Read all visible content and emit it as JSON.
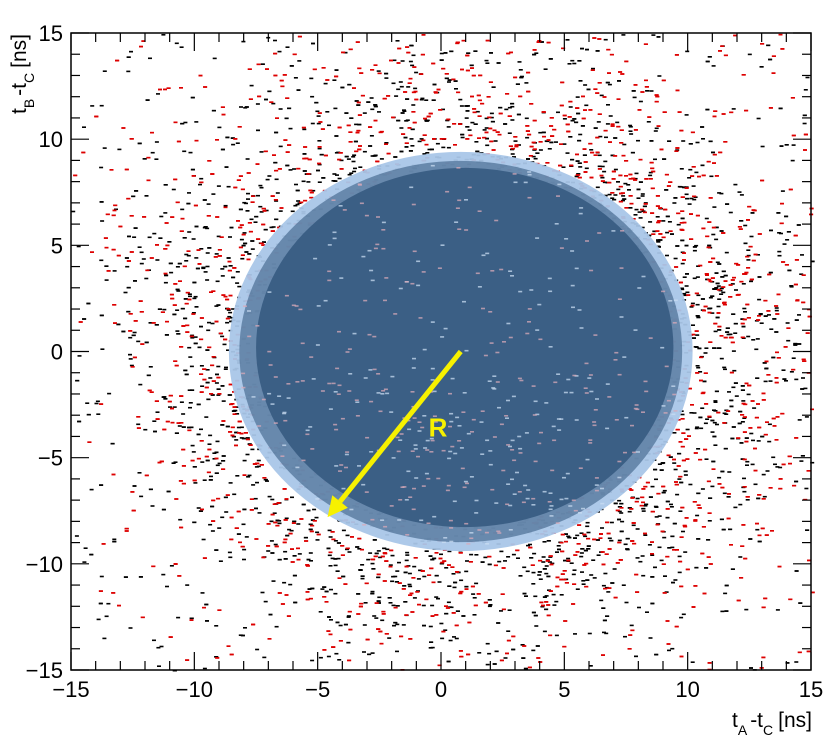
{
  "chart_data": {
    "type": "scatter",
    "title": "",
    "xlabel": {
      "t1": "t",
      "s1": "A",
      "mid": "-t",
      "s2": "C",
      "unit": "[ns]"
    },
    "ylabel": {
      "t1": "t",
      "s1": "B",
      "mid": "-t",
      "s2": "C",
      "unit": "[ns]"
    },
    "xlim": [
      -15,
      15
    ],
    "ylim": [
      -15,
      15
    ],
    "x_ticks": [
      "−15",
      "−10",
      "−5",
      "0",
      "5",
      "10",
      "15"
    ],
    "y_ticks": [
      "15",
      "10",
      "5",
      "0",
      "−5",
      "−10",
      "−15"
    ],
    "x_tick_values": [
      -15,
      -10,
      -5,
      0,
      5,
      10,
      15
    ],
    "y_tick_values": [
      15,
      10,
      5,
      0,
      -5,
      -10,
      -15
    ],
    "grid": false,
    "legend": "none",
    "series": [
      {
        "color": "#000000",
        "density": "ring",
        "center": [
          1.0,
          0.0
        ],
        "peak_radius": 9.0,
        "spread": 3.0
      },
      {
        "color": "#dd0000",
        "density": "ring",
        "center": [
          1.5,
          0.5
        ],
        "peak_radius": 9.5,
        "spread": 3.5
      }
    ],
    "region": {
      "shape": "circle",
      "center": [
        0.8,
        0.0
      ],
      "radius": 9.4,
      "fill_color": "#3b5f85",
      "edge_color": "#a9c6e8"
    },
    "annotation": {
      "label": "R",
      "color": "#f7f100",
      "arrow_from": [
        0.8,
        0.0
      ],
      "arrow_to": [
        -4.6,
        -7.8
      ],
      "label_at": [
        -0.5,
        -4.0
      ]
    }
  }
}
